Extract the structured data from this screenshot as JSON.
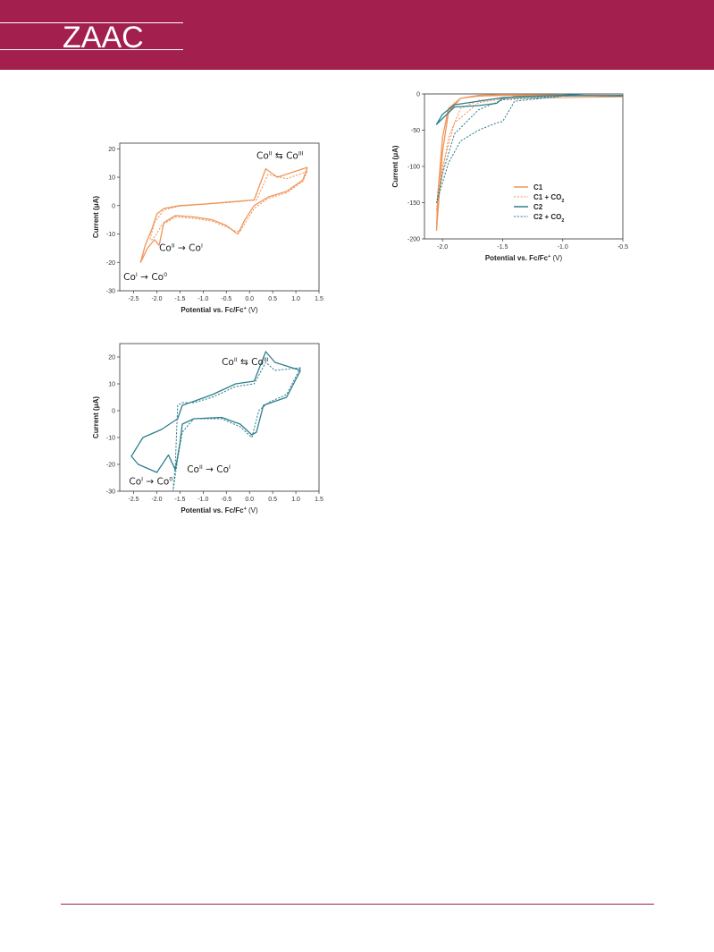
{
  "header": {
    "brand": "ZAAC",
    "color": "#a21f4e"
  },
  "colors": {
    "c1": "#f0955a",
    "c2": "#2f7f8e"
  },
  "chart_data": [
    {
      "type": "line",
      "xlabel": "Potential vs. Fc/Fc",
      "xlabel_sup": "+",
      "xlabel_unit": " (V)",
      "ylabel": "Current (μA)",
      "xlim": [
        -2.8,
        1.5
      ],
      "ylim": [
        -30,
        22
      ],
      "xticks": [
        "-2.5",
        "-2.0",
        "-1.5",
        "-1.0",
        "-0.5",
        "0.0",
        "0.5",
        "1.0",
        "1.5"
      ],
      "xtick_values": [
        -2.5,
        -2.0,
        -1.5,
        -1.0,
        -0.5,
        0.0,
        0.5,
        1.0,
        1.5
      ],
      "yticks": [
        "20",
        "10",
        "0",
        "-10",
        "-20",
        "-30"
      ],
      "ytick_values": [
        20,
        10,
        0,
        -10,
        -20,
        -30
      ],
      "annotations": [
        {
          "base": "Co",
          "sup": "II",
          "arrow": " ⇆ ",
          "base2": "Co",
          "sup2": "III",
          "x": 0.15,
          "y": 16.5
        },
        {
          "base": "Co",
          "sup": "II",
          "arrow": " → ",
          "base2": "Co",
          "sup2": "I",
          "x": -1.95,
          "y": -16
        },
        {
          "base": "Co",
          "sup": "I",
          "arrow": " → ",
          "base2": "Co",
          "sup2": "0",
          "x": -2.72,
          "y": -26.2
        }
      ],
      "series": [
        {
          "style": "solid",
          "color": "#f0955a",
          "x": [
            1.25,
            0.6,
            0.35,
            0.1,
            -0.5,
            -1.0,
            -1.5,
            -1.85,
            -2.0,
            -2.1,
            -2.25,
            -2.35,
            -2.2,
            -2.05,
            -1.95,
            -1.85,
            -1.6,
            -1.2,
            -0.8,
            -0.5,
            -0.3,
            -0.25,
            -0.1,
            0.1,
            0.4,
            0.8,
            1.15,
            1.25
          ],
          "y": [
            13.5,
            10,
            13,
            2,
            1.2,
            0.5,
            0,
            -1,
            -3,
            -8,
            -14,
            -20,
            -15,
            -12,
            -14,
            -6,
            -3.5,
            -4,
            -5,
            -7,
            -9.5,
            -10,
            -5,
            0,
            3,
            5,
            9,
            13.5
          ]
        },
        {
          "style": "dashed",
          "color": "#f0955a",
          "x": [
            1.25,
            0.8,
            0.4,
            0.15,
            -0.5,
            -1.0,
            -1.5,
            -1.85,
            -2.05,
            -2.15,
            -2.1,
            -2.0,
            -1.9,
            -1.6,
            -1.2,
            -0.8,
            -0.5,
            -0.3,
            -0.2,
            -0.05,
            0.1,
            0.4,
            0.8,
            1.15,
            1.25
          ],
          "y": [
            12,
            9.5,
            11,
            2,
            1,
            0.5,
            -0.2,
            -1.5,
            -6,
            -12,
            -12,
            -10,
            -7,
            -4,
            -4.5,
            -5.5,
            -7.5,
            -9,
            -9,
            -5,
            -1,
            2.5,
            4.5,
            8.5,
            12
          ]
        }
      ]
    },
    {
      "type": "line",
      "xlabel": "Potential vs. Fc/Fc",
      "xlabel_sup": "+",
      "xlabel_unit": " (V)",
      "ylabel": "Current (μA)",
      "xlim": [
        -2.8,
        1.5
      ],
      "ylim": [
        -30,
        25
      ],
      "xticks": [
        "-2.5",
        "-2.0",
        "-1.5",
        "-1.0",
        "-0.5",
        "0.0",
        "0.5",
        "1.0",
        "1.5"
      ],
      "xtick_values": [
        -2.5,
        -2.0,
        -1.5,
        -1.0,
        -0.5,
        0.0,
        0.5,
        1.0,
        1.5
      ],
      "yticks": [
        "20",
        "10",
        "0",
        "-10",
        "-20",
        "-30"
      ],
      "ytick_values": [
        20,
        10,
        0,
        -10,
        -20,
        -30
      ],
      "annotations": [
        {
          "base": "Co",
          "sup": "II",
          "arrow": " ⇆ ",
          "base2": "Co",
          "sup2": "III",
          "x": -0.6,
          "y": 17
        },
        {
          "base": "Co",
          "sup": "II",
          "arrow": " → ",
          "base2": "Co",
          "sup2": "I",
          "x": -1.35,
          "y": -23
        },
        {
          "base": "Co",
          "sup": "I",
          "arrow": " → ",
          "base2": "Co",
          "sup2": "0",
          "x": -2.6,
          "y": -27.5
        }
      ],
      "series": [
        {
          "style": "solid",
          "color": "#2f7f8e",
          "x": [
            1.1,
            0.55,
            0.35,
            0.1,
            -0.3,
            -0.8,
            -1.2,
            -1.45,
            -1.55,
            -1.9,
            -2.3,
            -2.55,
            -2.4,
            -2.0,
            -1.75,
            -1.6,
            -1.5,
            -1.45,
            -1.2,
            -0.6,
            -0.2,
            0.05,
            0.15,
            0.3,
            0.8,
            1.1
          ],
          "y": [
            15,
            18,
            22,
            11,
            10,
            6,
            3.5,
            2,
            -3,
            -7,
            -10,
            -17,
            -20,
            -23,
            -16.5,
            -22,
            -12,
            -5,
            -3,
            -2.5,
            -5,
            -9,
            -8,
            2,
            5,
            15
          ]
        },
        {
          "style": "dashed",
          "color": "#2f7f8e",
          "x": [
            1.1,
            0.55,
            0.35,
            0.1,
            -0.3,
            -0.8,
            -1.2,
            -1.45,
            -1.55,
            -1.6,
            -1.65,
            -1.55,
            -1.45,
            -1.2,
            -0.6,
            -0.2,
            0.05,
            0.2,
            0.4,
            0.8,
            1.1
          ],
          "y": [
            16,
            15,
            18,
            10,
            9,
            5,
            3,
            3,
            2,
            -20,
            -30,
            -18,
            -8,
            -3,
            -3,
            -6,
            -10,
            0,
            3,
            6,
            16
          ]
        }
      ]
    },
    {
      "type": "line",
      "xlabel": "Potential vs. Fc/Fc",
      "xlabel_sup": "+",
      "xlabel_unit": " (V)",
      "ylabel": "Current (μA)",
      "xlim": [
        -2.15,
        -0.5
      ],
      "ylim": [
        -200,
        0
      ],
      "xticks": [
        "-2.0",
        "-1.5",
        "-1.0",
        "-0.5"
      ],
      "xtick_values": [
        -2.0,
        -1.5,
        -1.0,
        -0.5
      ],
      "yticks": [
        "0",
        "-50",
        "-100",
        "-150",
        "-200"
      ],
      "ytick_values": [
        0,
        -50,
        -100,
        -150,
        -200
      ],
      "legend": [
        {
          "label": "C1",
          "sub": "",
          "style": "solid",
          "color": "#f0955a"
        },
        {
          "label": "C1 + CO",
          "sub": "2",
          "style": "dashed",
          "color": "#f0955a"
        },
        {
          "label": "C2",
          "sub": "",
          "style": "solid",
          "color": "#2f7f8e"
        },
        {
          "label": "C2 + CO",
          "sub": "2",
          "style": "dashed",
          "color": "#2f7f8e"
        }
      ],
      "series": [
        {
          "style": "solid",
          "color": "#f0955a",
          "x": [
            -0.5,
            -1.5,
            -1.7,
            -1.85,
            -1.95,
            -2.0,
            -2.05,
            -2.04,
            -2.0,
            -1.95,
            -1.85,
            -1.7,
            -1.5,
            -0.5
          ],
          "y": [
            -2,
            -1,
            -2,
            -6,
            -25,
            -80,
            -188,
            -140,
            -60,
            -20,
            -6,
            -3,
            -2,
            -2
          ]
        },
        {
          "style": "dashed",
          "color": "#f0955a",
          "x": [
            -0.5,
            -1.0,
            -1.5,
            -1.7,
            -1.85,
            -1.95,
            -2.05,
            -2.0,
            -1.9,
            -1.7,
            -1.5,
            -1.0,
            -0.5
          ],
          "y": [
            -4,
            -5,
            -6,
            -9,
            -20,
            -60,
            -160,
            -100,
            -40,
            -12,
            -7,
            -5,
            -4
          ]
        },
        {
          "style": "solid",
          "color": "#2f7f8e",
          "x": [
            -0.5,
            -1.0,
            -1.4,
            -1.5,
            -1.55,
            -1.7,
            -1.9,
            -2.05,
            -2.0,
            -1.9,
            -1.7,
            -1.5,
            -1.0,
            -0.75,
            -0.5
          ],
          "y": [
            -3,
            -2,
            -4,
            -6,
            -13,
            -16,
            -18,
            -42,
            -28,
            -15,
            -10,
            -5,
            -2,
            1,
            1
          ]
        },
        {
          "style": "dashed",
          "color": "#2f7f8e",
          "x": [
            -0.5,
            -1.0,
            -1.4,
            -1.5,
            -1.55,
            -1.7,
            -1.85,
            -1.95,
            -2.05,
            -2.0,
            -1.9,
            -1.7,
            -1.5,
            -1.0,
            -0.5
          ],
          "y": [
            -2,
            -3,
            -10,
            -38,
            -40,
            -50,
            -65,
            -95,
            -150,
            -110,
            -55,
            -22,
            -8,
            -3,
            -2
          ]
        }
      ]
    }
  ]
}
